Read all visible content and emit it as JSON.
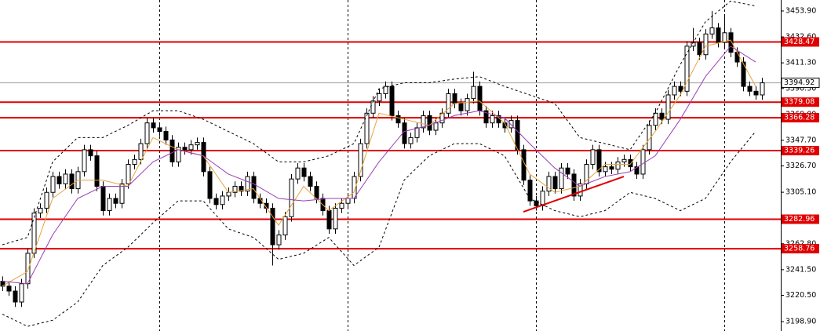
{
  "chart_data": {
    "type": "candlestick",
    "ylim": [
      3191.2,
      3462.9
    ],
    "yticks": [
      {
        "value": 3453.9,
        "label": "3453.90"
      },
      {
        "value": 3432.6,
        "label": "3432.60"
      },
      {
        "value": 3411.3,
        "label": "3411.30"
      },
      {
        "value": 3390.3,
        "label": "3390.30"
      },
      {
        "value": 3369.0,
        "label": "3369.00"
      },
      {
        "value": 3347.7,
        "label": "3347.70"
      },
      {
        "value": 3326.7,
        "label": "3326.70"
      },
      {
        "value": 3305.1,
        "label": "3305.10"
      },
      {
        "value": 3283.8,
        "label": "3283.80"
      },
      {
        "value": 3262.8,
        "label": "3262.80"
      },
      {
        "value": 3241.5,
        "label": "3241.50"
      },
      {
        "value": 3220.5,
        "label": "3220.50"
      },
      {
        "value": 3198.9,
        "label": "3198.90"
      }
    ],
    "candle_colors": {
      "up": "#ffffff",
      "down": "#000000",
      "outline": "#000000"
    },
    "candles": {
      "open": [
        3232,
        3228,
        3224,
        3215,
        3230,
        3255,
        3288,
        3292,
        3305,
        3318,
        3312,
        3320,
        3308,
        3322,
        3340,
        3335,
        3310,
        3290,
        3300,
        3296,
        3312,
        3328,
        3332,
        3345,
        3362,
        3358,
        3355,
        3348,
        3330,
        3342,
        3340,
        3344,
        3346,
        3322,
        3300,
        3295,
        3302,
        3305,
        3310,
        3306,
        3318,
        3300,
        3296,
        3292,
        3262,
        3270,
        3285,
        3316,
        3325,
        3318,
        3310,
        3300,
        3290,
        3275,
        3292,
        3296,
        3300,
        3318,
        3345,
        3370,
        3380,
        3386,
        3392,
        3368,
        3362,
        3345,
        3350,
        3358,
        3368,
        3356,
        3362,
        3370,
        3386,
        3378,
        3372,
        3382,
        3392,
        3372,
        3362,
        3368,
        3362,
        3358,
        3364,
        3340,
        3315,
        3298,
        3294,
        3306,
        3318,
        3308,
        3325,
        3320,
        3302,
        3312,
        3328,
        3340,
        3322,
        3326,
        3324,
        3330,
        3332,
        3326,
        3320,
        3340,
        3360,
        3370,
        3365,
        3385,
        3392,
        3388,
        3425,
        3428,
        3418,
        3435,
        3440,
        3428,
        3436,
        3420,
        3412,
        3392,
        3388,
        3385
      ],
      "high": [
        3236,
        3232,
        3228,
        3234,
        3259,
        3292,
        3296,
        3309,
        3322,
        3322,
        3324,
        3324,
        3326,
        3344,
        3344,
        3339,
        3314,
        3304,
        3304,
        3316,
        3332,
        3336,
        3349,
        3366,
        3366,
        3362,
        3359,
        3352,
        3346,
        3346,
        3348,
        3350,
        3350,
        3326,
        3304,
        3306,
        3309,
        3314,
        3314,
        3322,
        3322,
        3304,
        3300,
        3296,
        3274,
        3289,
        3320,
        3329,
        3329,
        3322,
        3314,
        3304,
        3294,
        3296,
        3300,
        3304,
        3322,
        3349,
        3374,
        3384,
        3390,
        3396,
        3396,
        3372,
        3366,
        3354,
        3362,
        3372,
        3372,
        3366,
        3374,
        3390,
        3390,
        3382,
        3386,
        3404,
        3396,
        3376,
        3372,
        3372,
        3366,
        3368,
        3368,
        3344,
        3319,
        3302,
        3310,
        3322,
        3322,
        3329,
        3329,
        3324,
        3316,
        3332,
        3344,
        3344,
        3330,
        3330,
        3334,
        3336,
        3336,
        3330,
        3344,
        3364,
        3374,
        3374,
        3389,
        3396,
        3396,
        3429,
        3440,
        3432,
        3439,
        3454,
        3444,
        3450,
        3440,
        3424,
        3416,
        3396,
        3392,
        3399
      ],
      "low": [
        3224,
        3220,
        3211,
        3211,
        3226,
        3251,
        3284,
        3288,
        3301,
        3308,
        3308,
        3304,
        3304,
        3318,
        3331,
        3306,
        3286,
        3286,
        3292,
        3292,
        3308,
        3324,
        3328,
        3341,
        3354,
        3351,
        3344,
        3326,
        3326,
        3336,
        3336,
        3340,
        3318,
        3296,
        3291,
        3291,
        3298,
        3301,
        3302,
        3302,
        3296,
        3292,
        3288,
        3245,
        3258,
        3266,
        3281,
        3312,
        3314,
        3306,
        3296,
        3286,
        3271,
        3271,
        3288,
        3292,
        3296,
        3314,
        3341,
        3366,
        3376,
        3382,
        3364,
        3358,
        3341,
        3341,
        3346,
        3354,
        3352,
        3352,
        3358,
        3366,
        3374,
        3368,
        3368,
        3378,
        3368,
        3358,
        3358,
        3358,
        3354,
        3354,
        3336,
        3311,
        3294,
        3290,
        3290,
        3302,
        3304,
        3304,
        3316,
        3298,
        3298,
        3308,
        3324,
        3318,
        3318,
        3320,
        3320,
        3326,
        3322,
        3316,
        3316,
        3336,
        3356,
        3361,
        3361,
        3381,
        3384,
        3384,
        3421,
        3414,
        3414,
        3431,
        3424,
        3424,
        3416,
        3408,
        3388,
        3384,
        3381,
        3381
      ],
      "close": [
        3228,
        3224,
        3215,
        3230,
        3255,
        3288,
        3292,
        3305,
        3318,
        3312,
        3320,
        3308,
        3322,
        3340,
        3335,
        3310,
        3290,
        3300,
        3296,
        3312,
        3328,
        3332,
        3345,
        3362,
        3358,
        3355,
        3348,
        3330,
        3342,
        3340,
        3344,
        3346,
        3322,
        3300,
        3295,
        3302,
        3305,
        3310,
        3306,
        3318,
        3300,
        3296,
        3292,
        3262,
        3270,
        3285,
        3316,
        3325,
        3318,
        3310,
        3300,
        3290,
        3275,
        3292,
        3296,
        3300,
        3318,
        3345,
        3370,
        3380,
        3386,
        3392,
        3368,
        3362,
        3345,
        3350,
        3358,
        3368,
        3356,
        3362,
        3370,
        3386,
        3378,
        3372,
        3382,
        3392,
        3372,
        3362,
        3368,
        3362,
        3358,
        3364,
        3340,
        3315,
        3298,
        3294,
        3306,
        3318,
        3308,
        3325,
        3320,
        3302,
        3312,
        3328,
        3340,
        3322,
        3326,
        3324,
        3330,
        3332,
        3326,
        3320,
        3340,
        3360,
        3370,
        3365,
        3385,
        3392,
        3388,
        3425,
        3428,
        3418,
        3435,
        3440,
        3428,
        3436,
        3420,
        3412,
        3392,
        3388,
        3385,
        3394.92
      ]
    },
    "indicator_x": [
      0,
      4,
      8,
      12,
      16,
      20,
      24,
      28,
      32,
      36,
      40,
      44,
      48,
      52,
      56,
      60,
      64,
      68,
      72,
      76,
      80,
      84,
      88,
      92,
      96,
      100,
      104,
      108,
      112,
      116,
      120
    ],
    "indicators": [
      {
        "color": "#e8a33c",
        "dashed": false,
        "values": [
          3228,
          3240,
          3300,
          3315,
          3315,
          3310,
          3350,
          3340,
          3335,
          3305,
          3308,
          3278,
          3310,
          3290,
          3305,
          3370,
          3365,
          3360,
          3378,
          3380,
          3362,
          3320,
          3305,
          3310,
          3328,
          3328,
          3355,
          3385,
          3425,
          3430,
          3392
        ]
      },
      {
        "color": "#9b3fb5",
        "dashed": false,
        "values": [
          3232,
          3230,
          3270,
          3300,
          3310,
          3310,
          3330,
          3340,
          3335,
          3320,
          3312,
          3300,
          3298,
          3300,
          3300,
          3330,
          3355,
          3360,
          3368,
          3372,
          3366,
          3345,
          3325,
          3310,
          3318,
          3322,
          3335,
          3365,
          3400,
          3425,
          3412
        ]
      },
      {
        "color": "#000000",
        "dashed": true,
        "values": [
          3262,
          3268,
          3330,
          3350,
          3350,
          3360,
          3372,
          3372,
          3365,
          3355,
          3345,
          3330,
          3330,
          3335,
          3345,
          3390,
          3395,
          3395,
          3398,
          3400,
          3392,
          3385,
          3378,
          3350,
          3345,
          3340,
          3370,
          3410,
          3445,
          3462,
          3458
        ]
      },
      {
        "color": "#000000",
        "dashed": true,
        "values": [
          3205,
          3195,
          3200,
          3215,
          3245,
          3260,
          3280,
          3298,
          3298,
          3275,
          3268,
          3250,
          3255,
          3268,
          3245,
          3260,
          3315,
          3335,
          3345,
          3345,
          3335,
          3300,
          3290,
          3285,
          3290,
          3305,
          3300,
          3290,
          3300,
          3330,
          3355
        ]
      }
    ],
    "levels": {
      "color": "#e00000",
      "values": [
        3428.47,
        3379.08,
        3366.28,
        3339.26,
        3282.96,
        3258.76
      ]
    },
    "last_price": {
      "color": "#a0a0a0",
      "value": 3394.92
    },
    "trendline": {
      "color": "#e00000",
      "x": [
        83,
        99
      ],
      "values": [
        3289,
        3318
      ]
    }
  }
}
